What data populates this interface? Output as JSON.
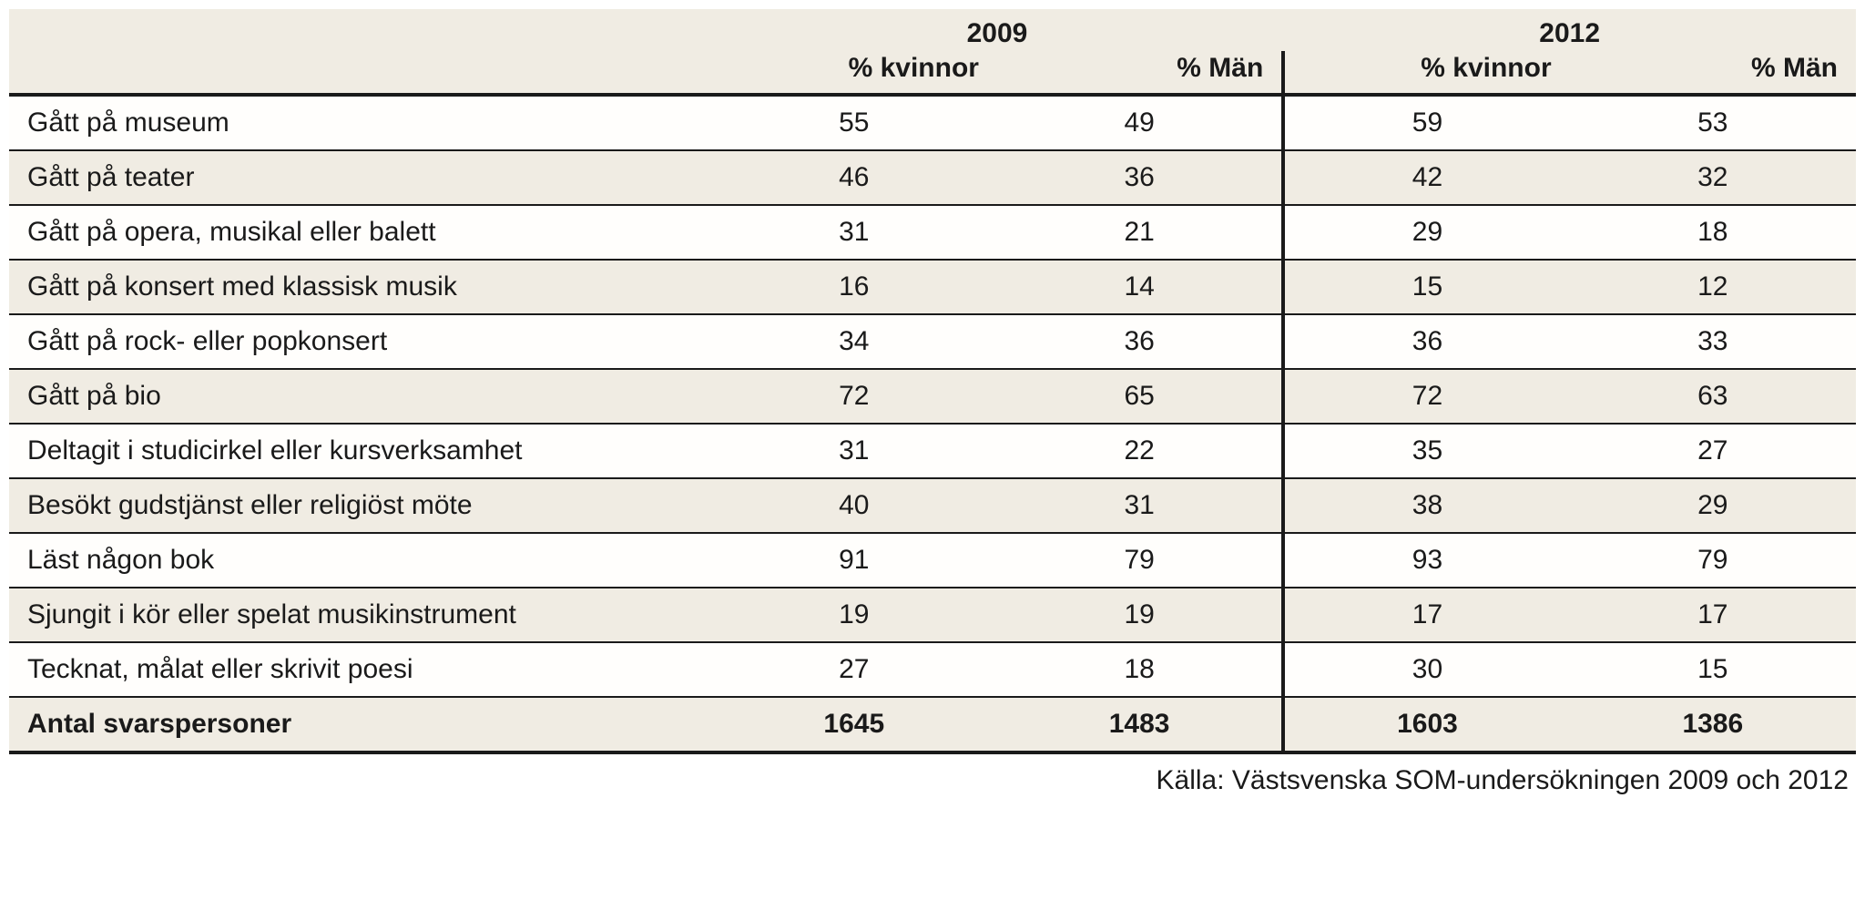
{
  "table": {
    "years": [
      "2009",
      "2012"
    ],
    "subheaders": [
      "% kvinnor",
      "% Män"
    ],
    "columns": [
      "",
      "% kvinnor",
      "% Män",
      "% kvinnor",
      "% Män"
    ],
    "rows": [
      {
        "label": "Gått på museum",
        "values": [
          "55",
          "49",
          "59",
          "53"
        ]
      },
      {
        "label": "Gått på teater",
        "values": [
          "46",
          "36",
          "42",
          "32"
        ]
      },
      {
        "label": "Gått på opera, musikal eller balett",
        "values": [
          "31",
          "21",
          "29",
          "18"
        ]
      },
      {
        "label": "Gått på konsert med klassisk musik",
        "values": [
          "16",
          "14",
          "15",
          "12"
        ]
      },
      {
        "label": "Gått på rock- eller popkonsert",
        "values": [
          "34",
          "36",
          "36",
          "33"
        ]
      },
      {
        "label": "Gått på bio",
        "values": [
          "72",
          "65",
          "72",
          "63"
        ]
      },
      {
        "label": "Deltagit i studicirkel eller kursverksamhet",
        "values": [
          "31",
          "22",
          "35",
          "27"
        ]
      },
      {
        "label": "Besökt gudstjänst eller religiöst möte",
        "values": [
          "40",
          "31",
          "38",
          "29"
        ]
      },
      {
        "label": "Läst någon bok",
        "values": [
          "91",
          "79",
          "93",
          "79"
        ]
      },
      {
        "label": "Sjungit i kör eller spelat musikinstrument",
        "values": [
          "19",
          "19",
          "17",
          "17"
        ]
      },
      {
        "label": "Tecknat, målat eller skrivit poesi",
        "values": [
          "27",
          "18",
          "30",
          "15"
        ]
      }
    ],
    "totals": {
      "label": "Antal svarspersoner",
      "values": [
        "1645",
        "1483",
        "1603",
        "1386"
      ]
    },
    "source": "Källa: Västsvenska SOM-undersökningen 2009 och 2012",
    "colors": {
      "row_alt_bg": "#f0ece3",
      "row_bg": "#fffefc",
      "border": "#1a1a1a",
      "text": "#1a1a1a"
    }
  }
}
